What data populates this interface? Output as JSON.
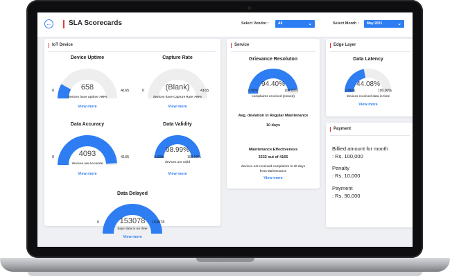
{
  "header": {
    "title": "SLA Scorecards",
    "vendor_label": "Select Vendor :",
    "vendor_value": "All",
    "month_label": "Select Month :",
    "month_value": "May 2021"
  },
  "iot": {
    "title": "IoT Device",
    "uptime": {
      "title": "Device Uptime",
      "value": "658",
      "min": "0",
      "max": "4165",
      "caption": "devices have uptime >99%",
      "link": "View more",
      "fraction": 0.16
    },
    "capture": {
      "title": "Capture Rate",
      "value": "(Blank)",
      "min": "0",
      "max": "4165",
      "caption": "devices have Capture Rate >99%",
      "link": "View more",
      "fraction": 0
    },
    "accuracy": {
      "title": "Data Accuracy",
      "value": "4093",
      "min": "0",
      "max": "4165",
      "caption": "devices are Accurate",
      "link": "View more",
      "fraction": 0.98
    },
    "validity": {
      "title": "Data Validity",
      "value": "98.99%",
      "min": "0.00%",
      "max": "100.00%",
      "caption": "devices are valid",
      "link": "View more",
      "fraction": 0.99
    },
    "delayed": {
      "title": "Data Delayed",
      "value": "153078",
      "min": "0",
      "max": "153078",
      "caption": "days data is on time",
      "link": "View more",
      "fraction": 1.0
    }
  },
  "service": {
    "title": "Service",
    "grievance": {
      "title": "Grievance Resoluton",
      "value": "94.40%",
      "min": "0.00%",
      "max": "100.00%",
      "caption": "complaints received (closed)",
      "fraction": 0.944
    },
    "deviation_title": "Avg. deviation in Regular Maintenance",
    "deviation_value": "10 days",
    "maint_title": "Maintenance Effectiveness",
    "maint_value": "3332 out of 4165",
    "maint_caption_1": "devices not received complaints in 30 days",
    "maint_caption_2": "from Maintenance",
    "link": "View more"
  },
  "edge": {
    "title": "Edge Layer",
    "latency": {
      "title": "Data Latency",
      "value": "44.08%",
      "min": "0.00%",
      "max": "100.00%",
      "caption": "devices received data in time",
      "link": "View more",
      "fraction": 0.4408
    }
  },
  "payment": {
    "title": "Payment",
    "billed_label": "Billied amount for month",
    "billed_value": ": Rs. 100,000",
    "penalty_label": "Penalty",
    "penalty_value": ": Rs. 10,000",
    "payment_label": "Payment",
    "payment_value": ": Rs. 90,000"
  },
  "colors": {
    "accent": "#2e7df2",
    "track": "#eeeeee",
    "title_bar": "#e23b3b"
  }
}
